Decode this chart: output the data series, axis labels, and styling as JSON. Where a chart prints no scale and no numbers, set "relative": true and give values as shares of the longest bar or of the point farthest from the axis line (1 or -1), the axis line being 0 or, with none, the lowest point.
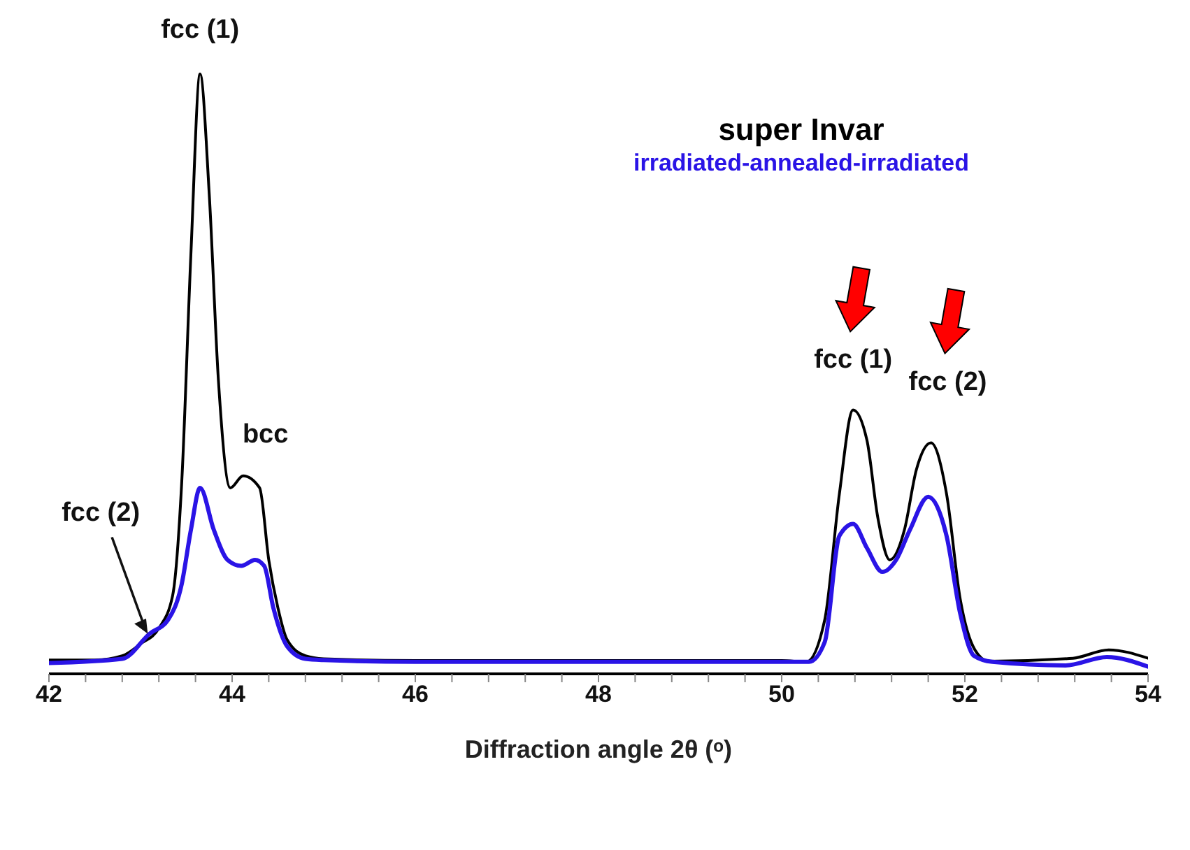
{
  "chart_data": {
    "type": "line",
    "relative": true,
    "xlabel": "Diffraction angle 2θ (ᵒ)",
    "xlim": [
      42,
      54
    ],
    "xticks": [
      42,
      {
        "value": 42.4,
        "label": null
      },
      {
        "value": 42.8,
        "label": null
      },
      {
        "value": 43.2,
        "label": null
      },
      {
        "value": 43.6,
        "label": null
      },
      44,
      {
        "value": 44.4,
        "label": null
      },
      {
        "value": 44.8,
        "label": null
      },
      {
        "value": 45.2,
        "label": null
      },
      {
        "value": 45.6,
        "label": null
      },
      46,
      {
        "value": 46.4,
        "label": null
      },
      {
        "value": 46.8,
        "label": null
      },
      {
        "value": 47.2,
        "label": null
      },
      {
        "value": 47.6,
        "label": null
      },
      48,
      {
        "value": 48.4,
        "label": null
      },
      {
        "value": 48.8,
        "label": null
      },
      {
        "value": 49.2,
        "label": null
      },
      {
        "value": 49.6,
        "label": null
      },
      50,
      {
        "value": 50.4,
        "label": null
      },
      {
        "value": 50.8,
        "label": null
      },
      {
        "value": 51.2,
        "label": null
      },
      {
        "value": 51.6,
        "label": null
      },
      52,
      {
        "value": 52.4,
        "label": null
      },
      {
        "value": 52.8,
        "label": null
      },
      {
        "value": 53.2,
        "label": null
      },
      {
        "value": 53.6,
        "label": null
      },
      54
    ],
    "legend": "top right",
    "marker": "none",
    "line_style": "solid",
    "series": [
      {
        "name": "super Invar",
        "color": "#000000",
        "x": [
          42,
          42.5,
          42.8,
          43,
          43.2,
          43.35,
          43.45,
          43.55,
          43.65,
          43.75,
          43.85,
          43.98,
          44.12,
          44.3,
          44.4,
          44.5,
          44.6,
          44.8,
          45,
          46,
          47,
          48,
          49,
          50,
          50.27,
          50.47,
          50.63,
          50.78,
          50.93,
          51.05,
          51.18,
          51.34,
          51.47,
          51.63,
          51.8,
          51.95,
          52.11,
          52.26,
          53.18,
          53.57,
          54
        ],
        "values": [
          0.023,
          0.023,
          0.03,
          0.05,
          0.076,
          0.13,
          0.32,
          0.7,
          1.0,
          0.8,
          0.49,
          0.31,
          0.33,
          0.31,
          0.19,
          0.11,
          0.057,
          0.03,
          0.025,
          0.022,
          0.022,
          0.022,
          0.022,
          0.022,
          0.02,
          0.09,
          0.3,
          0.44,
          0.39,
          0.26,
          0.19,
          0.24,
          0.34,
          0.385,
          0.3,
          0.124,
          0.04,
          0.021,
          0.026,
          0.04,
          0.026
        ]
      },
      {
        "name": "irradiated-annealed-irradiated",
        "color": "#2a14e6",
        "x": [
          42,
          42.8,
          43.1,
          43.3,
          43.45,
          43.55,
          43.65,
          43.8,
          43.95,
          44.1,
          44.25,
          44.35,
          44.45,
          44.6,
          44.8,
          45,
          46,
          47,
          48,
          49,
          50,
          50.3,
          50.47,
          50.63,
          50.78,
          50.93,
          51.1,
          51.25,
          51.4,
          51.6,
          51.8,
          51.95,
          52.1,
          52.3,
          53.1,
          53.55,
          54
        ],
        "values": [
          0.018,
          0.025,
          0.067,
          0.09,
          0.15,
          0.24,
          0.31,
          0.24,
          0.19,
          0.18,
          0.19,
          0.18,
          0.11,
          0.046,
          0.025,
          0.023,
          0.02,
          0.02,
          0.02,
          0.02,
          0.02,
          0.02,
          0.053,
          0.23,
          0.25,
          0.21,
          0.17,
          0.19,
          0.24,
          0.295,
          0.23,
          0.1,
          0.03,
          0.02,
          0.014,
          0.028,
          0.012
        ]
      }
    ],
    "annotations": [
      {
        "text": "fcc (1)",
        "x": 43.65,
        "y": 1.0
      },
      {
        "text": "bcc",
        "x": 44.15,
        "y": 0.33
      },
      {
        "text": "fcc (2)",
        "x": 43.1,
        "y": 0.06
      },
      {
        "text": "fcc (1)",
        "x": 50.78,
        "y": 0.44
      },
      {
        "text": "fcc (2)",
        "x": 51.63,
        "y": 0.385
      }
    ]
  }
}
